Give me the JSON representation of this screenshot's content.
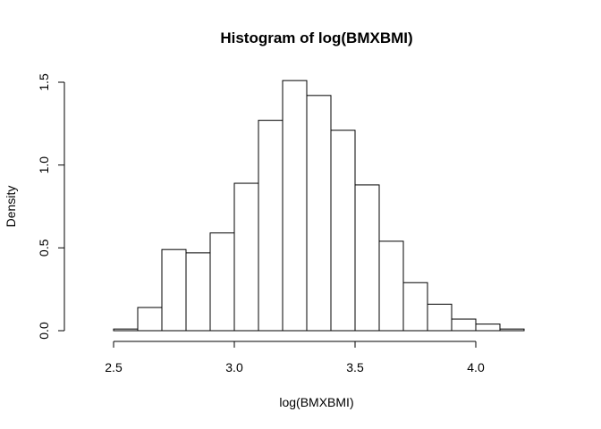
{
  "chart_data": {
    "type": "bar",
    "title": "Histogram of log(BMXBMI)",
    "xlabel": "log(BMXBMI)",
    "ylabel": "Density",
    "xlim": [
      2.4,
      4.3
    ],
    "ylim": [
      0,
      1.6
    ],
    "xticks": [
      2.5,
      3.0,
      3.5,
      4.0
    ],
    "xtick_labels": [
      "2.5",
      "3.0",
      "3.5",
      "4.0"
    ],
    "yticks": [
      0.0,
      0.5,
      1.0,
      1.5
    ],
    "ytick_labels": [
      "0.0",
      "0.5",
      "1.0",
      "1.5"
    ],
    "bin_width": 0.1,
    "bins": [
      {
        "start": 2.5,
        "end": 2.6,
        "density": 0.01
      },
      {
        "start": 2.6,
        "end": 2.7,
        "density": 0.14
      },
      {
        "start": 2.7,
        "end": 2.8,
        "density": 0.49
      },
      {
        "start": 2.8,
        "end": 2.9,
        "density": 0.47
      },
      {
        "start": 2.9,
        "end": 3.0,
        "density": 0.59
      },
      {
        "start": 3.0,
        "end": 3.1,
        "density": 0.89
      },
      {
        "start": 3.1,
        "end": 3.2,
        "density": 1.27
      },
      {
        "start": 3.2,
        "end": 3.3,
        "density": 1.51
      },
      {
        "start": 3.3,
        "end": 3.4,
        "density": 1.42
      },
      {
        "start": 3.4,
        "end": 3.5,
        "density": 1.21
      },
      {
        "start": 3.5,
        "end": 3.6,
        "density": 0.88
      },
      {
        "start": 3.6,
        "end": 3.7,
        "density": 0.54
      },
      {
        "start": 3.7,
        "end": 3.8,
        "density": 0.29
      },
      {
        "start": 3.8,
        "end": 3.9,
        "density": 0.16
      },
      {
        "start": 3.9,
        "end": 4.0,
        "density": 0.07
      },
      {
        "start": 4.0,
        "end": 4.1,
        "density": 0.04
      },
      {
        "start": 4.1,
        "end": 4.2,
        "density": 0.01
      }
    ]
  }
}
